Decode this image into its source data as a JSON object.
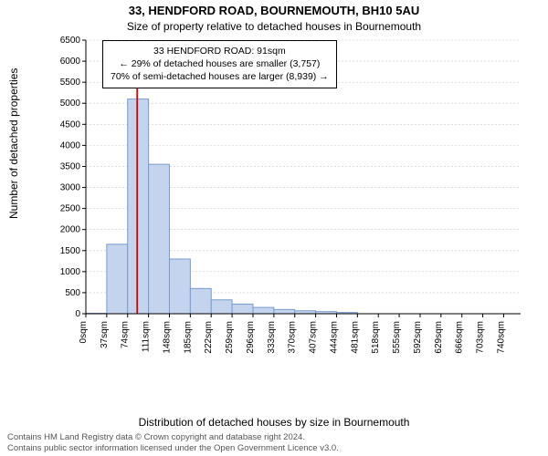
{
  "title_line1": "33, HENDFORD ROAD, BOURNEMOUTH, BH10 5AU",
  "title_line2": "Size of property relative to detached houses in Bournemouth",
  "annotation": {
    "line1": "33 HENDFORD ROAD: 91sqm",
    "line2": "← 29% of detached houses are smaller (3,757)",
    "line3": "70% of semi-detached houses are larger (8,939) →"
  },
  "ylabel": "Number of detached properties",
  "xlabel": "Distribution of detached houses by size in Bournemouth",
  "attribution_line1": "Contains HM Land Registry data © Crown copyright and database right 2024.",
  "attribution_line2": "Contains public sector information licensed under the Open Government Licence v3.0.",
  "chart": {
    "type": "histogram",
    "background_color": "#ffffff",
    "bar_fill": "#c4d4ef",
    "bar_stroke": "#7a9acc",
    "grid_color": "#c8c8c8",
    "axis_color": "#000000",
    "ref_line_color": "#cc0000",
    "ylim": [
      0,
      6500
    ],
    "ytick_step": 500,
    "xlim": [
      0,
      770
    ],
    "xtick_step": 37,
    "xtick_count": 21,
    "bin_width": 37,
    "reference_x": 91,
    "bars": [
      {
        "x": 0,
        "count": 10
      },
      {
        "x": 37,
        "count": 1650
      },
      {
        "x": 74,
        "count": 5100
      },
      {
        "x": 111,
        "count": 3550
      },
      {
        "x": 148,
        "count": 1300
      },
      {
        "x": 185,
        "count": 600
      },
      {
        "x": 222,
        "count": 330
      },
      {
        "x": 259,
        "count": 230
      },
      {
        "x": 296,
        "count": 150
      },
      {
        "x": 333,
        "count": 100
      },
      {
        "x": 370,
        "count": 70
      },
      {
        "x": 407,
        "count": 50
      },
      {
        "x": 444,
        "count": 30
      },
      {
        "x": 481,
        "count": 0
      },
      {
        "x": 518,
        "count": 0
      },
      {
        "x": 555,
        "count": 0
      },
      {
        "x": 592,
        "count": 0
      },
      {
        "x": 629,
        "count": 0
      },
      {
        "x": 666,
        "count": 0
      },
      {
        "x": 703,
        "count": 0
      },
      {
        "x": 740,
        "count": 0
      }
    ]
  }
}
